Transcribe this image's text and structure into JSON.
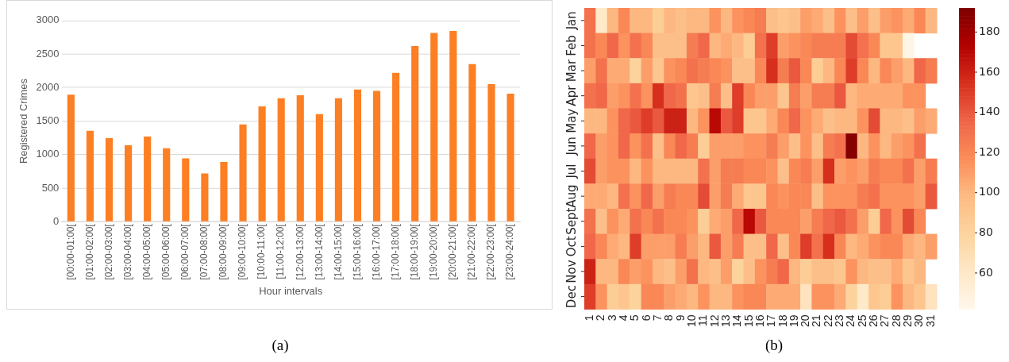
{
  "chart_data": [
    {
      "type": "bar",
      "title": "(a)",
      "xlabel": "Hour intervals",
      "ylabel": "Registered Crimes",
      "categories": [
        "[00:00-01:00[",
        "[01:00-02:00[",
        "[02:00-03:00[",
        "[03:00-04:00[",
        "[04:00-05:00[",
        "[05:00-06:00[",
        "[06:00-07:00[",
        "[07:00-08:00[",
        "[08:00-09:00[",
        "[09:00-10:00[",
        "[10:00-11:00[",
        "[11:00-12:00[",
        "[12:00-13:00[",
        "[13:00-14:00[",
        "[14:00-15:00[",
        "[15:00-16:00[",
        "[16:00-17:00[",
        "[17:00-18:00[",
        "[18:00-19:00[",
        "[19:00-20:00[",
        "[20:00-21:00[",
        "[21:00-22:00[",
        "[22:00-23:00[",
        "[23:00-24:00["
      ],
      "values": [
        1895,
        1355,
        1245,
        1140,
        1270,
        1095,
        945,
        720,
        890,
        1450,
        1720,
        1840,
        1885,
        1605,
        1840,
        1970,
        1950,
        2220,
        2620,
        2815,
        2845,
        2350,
        2050,
        1910
      ],
      "color": "#fd7f23",
      "ylim": [
        0,
        3000
      ],
      "yticks": [
        0,
        500,
        1000,
        1500,
        2000,
        2500,
        3000
      ],
      "grid": "y"
    },
    {
      "type": "heatmap",
      "title": "(b)",
      "categories": [
        "1",
        "2",
        "3",
        "4",
        "5",
        "6",
        "7",
        "8",
        "9",
        "10",
        "11",
        "12",
        "13",
        "14",
        "15",
        "16",
        "17",
        "18",
        "19",
        "20",
        "21",
        "22",
        "23",
        "24",
        "25",
        "26",
        "27",
        "28",
        "29",
        "30",
        "31"
      ],
      "y_categories": [
        "Jan",
        "Feb",
        "Mar",
        "Apr",
        "May",
        "Jun",
        "Jul",
        "Aug",
        "Sept",
        "Oct",
        "Nov",
        "Dec"
      ],
      "cells": [
        [
          130,
          60,
          100,
          120,
          100,
          100,
          85,
          100,
          95,
          100,
          100,
          115,
          100,
          115,
          120,
          125,
          95,
          90,
          95,
          110,
          105,
          95,
          115,
          95,
          110,
          95,
          110,
          115,
          105,
          120,
          100
        ],
        [
          130,
          120,
          135,
          115,
          130,
          120,
          95,
          95,
          95,
          125,
          135,
          100,
          105,
          100,
          85,
          130,
          150,
          110,
          115,
          120,
          125,
          125,
          125,
          145,
          130,
          120,
          90,
          90,
          45,
          null,
          null
        ],
        [
          110,
          130,
          105,
          105,
          80,
          110,
          90,
          115,
          120,
          130,
          125,
          120,
          115,
          95,
          95,
          120,
          155,
          125,
          140,
          120,
          85,
          100,
          120,
          150,
          120,
          100,
          120,
          110,
          100,
          135,
          125
        ],
        [
          130,
          135,
          110,
          115,
          130,
          115,
          155,
          135,
          130,
          90,
          95,
          125,
          95,
          150,
          120,
          110,
          110,
          90,
          125,
          110,
          125,
          125,
          140,
          100,
          105,
          105,
          105,
          105,
          115,
          115,
          null
        ],
        [
          100,
          100,
          115,
          135,
          140,
          150,
          140,
          160,
          160,
          100,
          115,
          170,
          140,
          150,
          90,
          90,
          105,
          120,
          135,
          115,
          105,
          95,
          100,
          100,
          115,
          145,
          100,
          100,
          95,
          110,
          105
        ],
        [
          135,
          110,
          115,
          135,
          115,
          130,
          95,
          120,
          135,
          125,
          85,
          110,
          110,
          110,
          115,
          115,
          125,
          110,
          95,
          115,
          95,
          125,
          130,
          190,
          100,
          115,
          100,
          110,
          115,
          130,
          null
        ],
        [
          145,
          110,
          115,
          115,
          100,
          115,
          100,
          100,
          100,
          100,
          130,
          110,
          125,
          125,
          120,
          120,
          115,
          95,
          120,
          125,
          110,
          155,
          110,
          115,
          110,
          125,
          120,
          120,
          130,
          110,
          125
        ],
        [
          105,
          105,
          100,
          130,
          115,
          135,
          110,
          125,
          120,
          120,
          145,
          110,
          125,
          105,
          90,
          90,
          120,
          115,
          120,
          120,
          95,
          115,
          115,
          115,
          125,
          130,
          115,
          115,
          115,
          110,
          140
        ],
        [
          130,
          95,
          115,
          105,
          130,
          120,
          130,
          120,
          120,
          115,
          85,
          105,
          110,
          135,
          170,
          140,
          120,
          120,
          120,
          110,
          125,
          135,
          140,
          130,
          110,
          85,
          135,
          115,
          145,
          120,
          null
        ],
        [
          135,
          120,
          105,
          100,
          150,
          110,
          110,
          110,
          125,
          110,
          100,
          140,
          110,
          125,
          95,
          95,
          135,
          95,
          120,
          150,
          130,
          155,
          120,
          100,
          105,
          115,
          120,
          120,
          105,
          100,
          110
        ],
        [
          160,
          100,
          100,
          120,
          110,
          115,
          100,
          95,
          110,
          130,
          100,
          95,
          110,
          80,
          95,
          115,
          125,
          135,
          100,
          85,
          95,
          95,
          90,
          115,
          100,
          95,
          95,
          105,
          90,
          100,
          null
        ],
        [
          150,
          115,
          85,
          90,
          80,
          120,
          120,
          110,
          105,
          100,
          115,
          100,
          100,
          115,
          120,
          120,
          105,
          105,
          105,
          65,
          115,
          115,
          105,
          80,
          60,
          90,
          85,
          115,
          100,
          90,
          65
        ]
      ],
      "clim": [
        42,
        192
      ],
      "cticks": [
        60,
        80,
        100,
        120,
        140,
        160,
        180
      ]
    }
  ]
}
